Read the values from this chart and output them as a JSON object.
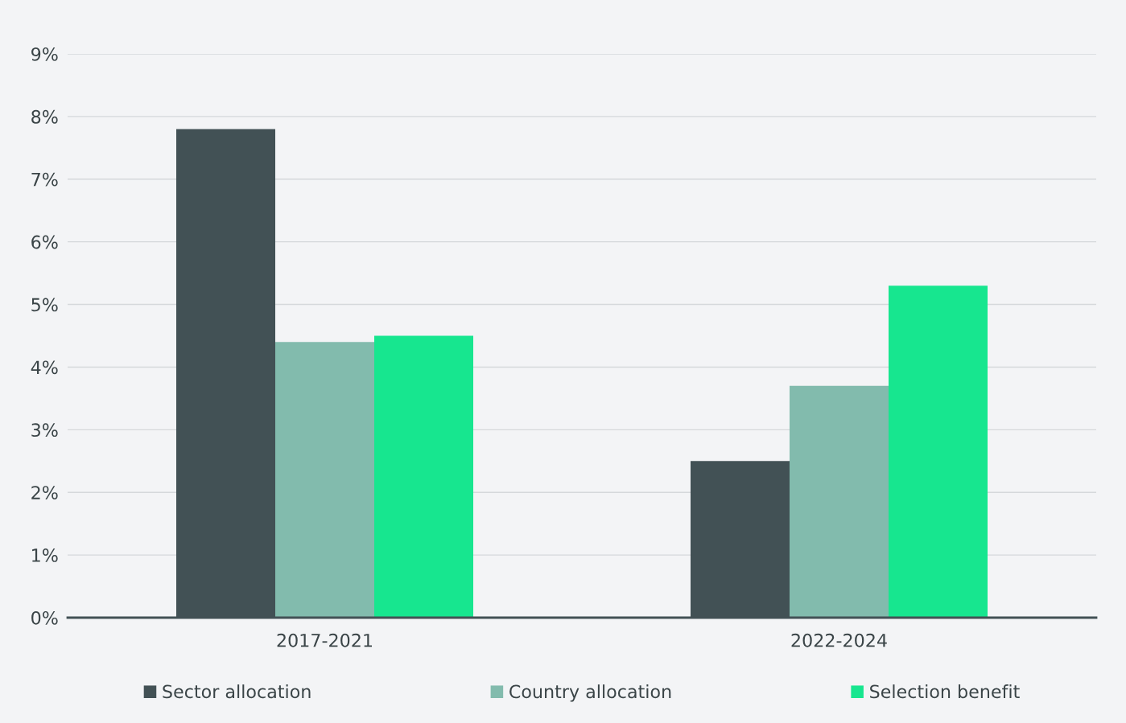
{
  "chart_data": {
    "type": "bar",
    "categories": [
      "2017-2021",
      "2022-2024"
    ],
    "series": [
      {
        "name": "Sector allocation",
        "color": "#425155",
        "values": [
          7.8,
          2.5
        ]
      },
      {
        "name": "Country allocation",
        "color": "#82bbad",
        "values": [
          4.4,
          3.7
        ]
      },
      {
        "name": "Selection benefit",
        "color": "#17e68f",
        "values": [
          4.5,
          5.3
        ]
      }
    ],
    "ylim": [
      0,
      9
    ],
    "yticks": [
      {
        "value": 0,
        "label": "0%"
      },
      {
        "value": 1,
        "label": "1%"
      },
      {
        "value": 2,
        "label": "2%"
      },
      {
        "value": 3,
        "label": "3%"
      },
      {
        "value": 4,
        "label": "4%"
      },
      {
        "value": 5,
        "label": "5%"
      },
      {
        "value": 6,
        "label": "6%"
      },
      {
        "value": 7,
        "label": "7%"
      },
      {
        "value": 8,
        "label": "8%"
      },
      {
        "value": 9,
        "label": "9%"
      }
    ],
    "grid": "y",
    "legend": "bottom"
  }
}
